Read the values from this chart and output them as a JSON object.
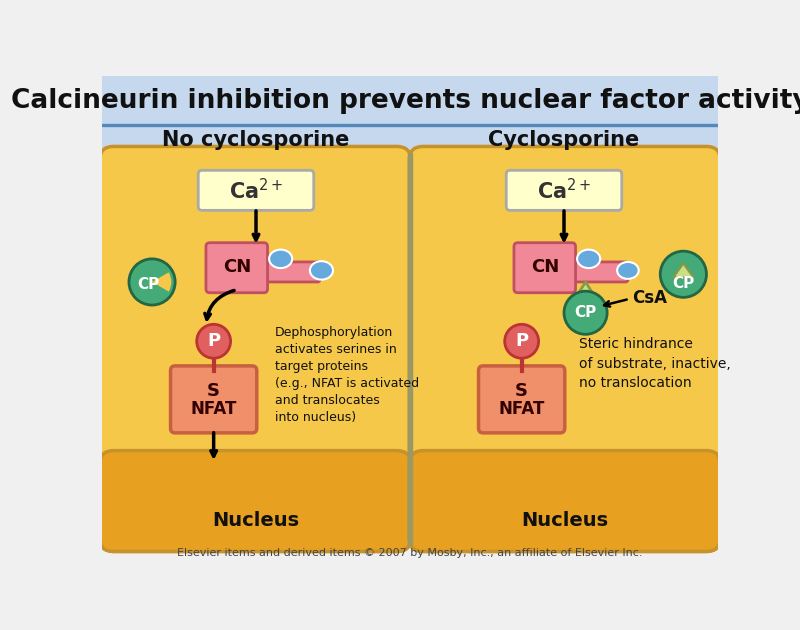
{
  "title": "Calcineurin inhibition prevents nuclear factor activity",
  "title_fontsize": 19,
  "title_bg": "#c5d8ed",
  "left_panel_title": "No cyclosporine",
  "right_panel_title": "Cyclosporine",
  "panel_title_fontsize": 15,
  "cell_bg": "#f5c84a",
  "cell_border": "#c8922a",
  "nucleus_bg": "#e8a020",
  "header_bg": "#c5d8ed",
  "divider_color": "#5588bb",
  "ca_box_color": "#ffffcc",
  "ca_box_border": "#aaaaaa",
  "cn_color": "#f08898",
  "cn_border": "#c05060",
  "ca_ball_color": "#66aadd",
  "p_ball_color": "#e06060",
  "nfat_color": "#f0906a",
  "nfat_border": "#c86040",
  "cp_color": "#44aa77",
  "cp_border": "#226644",
  "csa_color": "#ccdd88",
  "csa_border": "#889944",
  "footer_text": "Elsevier items and derived items © 2007 by Mosby, Inc., an affiliate of Elsevier Inc.",
  "footer_fontsize": 8,
  "footer_bg": "#f0f0f0",
  "text_left": "Dephosphorylation\nactivates serines in\ntarget proteins\n(e.g., NFAT is activated\nand translocates\ninto nucleus)",
  "text_right": "Steric hindrance\nof substrate, inactive,\nno translocation",
  "nucleus_text": "Nucleus",
  "cn_text": "CN",
  "p_text": "P",
  "s_text": "S",
  "nfat_text": "NFAT",
  "cp_text": "CP",
  "csa_text": "CsA"
}
